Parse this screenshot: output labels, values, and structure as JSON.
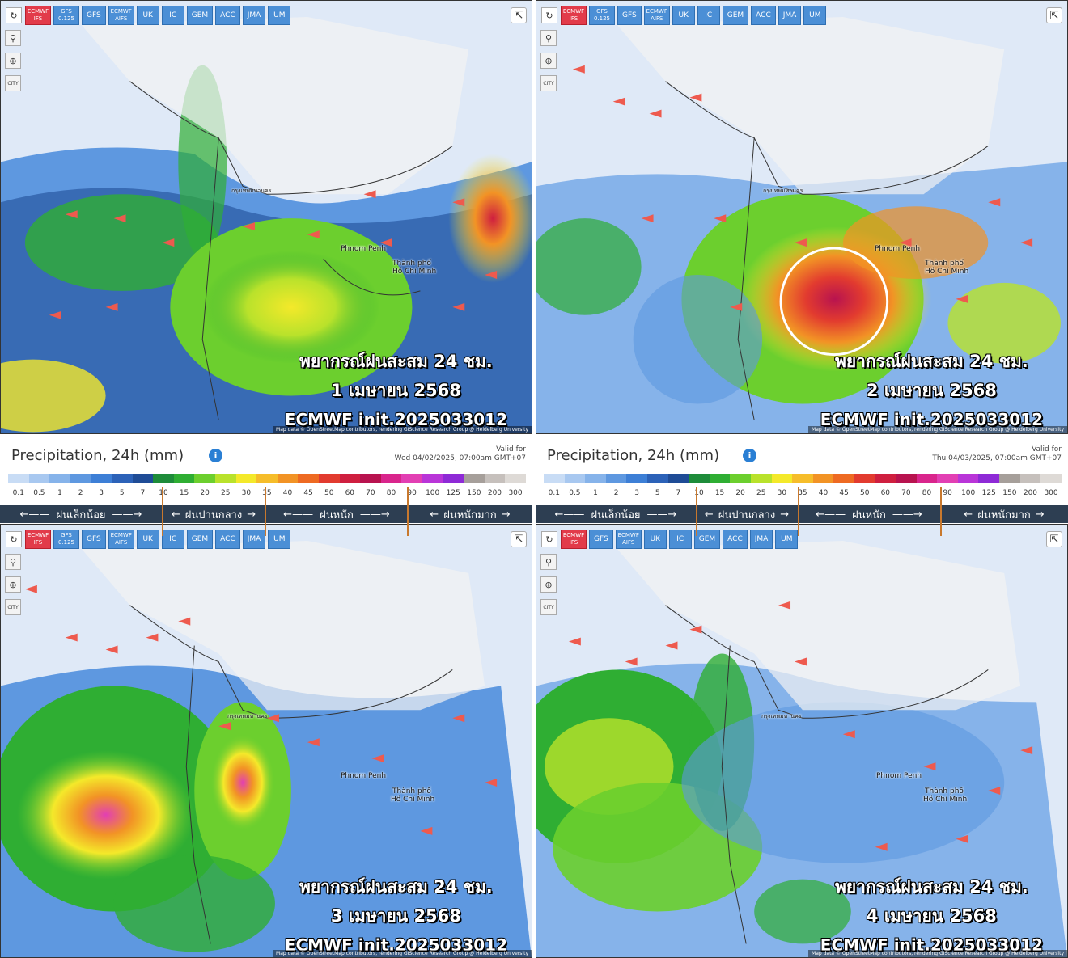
{
  "toolbar": {
    "buttons_full": [
      "ECMWF IFS",
      "GFS 0.125",
      "GFS",
      "ECMWF AIFS",
      "UK",
      "IC",
      "GEM",
      "ACC",
      "JMA",
      "UM"
    ],
    "buttons_p4": [
      "ECMWF IFS",
      "GFS",
      "ECMWF AIFS",
      "UK",
      "IC",
      "GEM",
      "ACC",
      "JMA",
      "UM"
    ],
    "side_icons": [
      "reload-icon",
      "location-icon",
      "zoom-icon",
      "city-icon"
    ],
    "side_labels": {
      "reload": "↻",
      "location": "⚲",
      "zoom": "⊕",
      "city": "CITY"
    },
    "share": "⇱"
  },
  "panels": [
    {
      "caption_line1": "พยากรณ์ฝนสะสม 24 ชม.",
      "caption_line2": "1 เมษายน 2568",
      "caption_line3": "ECMWF init.2025033012"
    },
    {
      "caption_line1": "พยากรณ์ฝนสะสม 24 ชม.",
      "caption_line2": "2 เมษายน 2568",
      "caption_line3": "ECMWF init.2025033012"
    },
    {
      "caption_line1": "พยากรณ์ฝนสะสม 24 ชม.",
      "caption_line2": "3 เมษายน 2568",
      "caption_line3": "ECMWF init.2025033012"
    },
    {
      "caption_line1": "พยากรณ์ฝนสะสม 24 ชม.",
      "caption_line2": "4 เมษายน 2568",
      "caption_line3": "ECMWF init.2025033012"
    }
  ],
  "map_labels": {
    "city1": "Phnom Penh",
    "city2a": "Thành phố",
    "city2b": "Hồ Chí Minh",
    "city3": "กรุงเทพมหานคร",
    "credit": "Map data © OpenStreetMap contributors, rendering GIScience Research Group @ Heidelberg University"
  },
  "legends": [
    {
      "title": "Precipitation, 24h (mm)",
      "valid_label": "Valid for",
      "valid_time": "Wed 04/02/2025, 07:00am GMT+07"
    },
    {
      "title": "Precipitation, 24h (mm)",
      "valid_label": "Valid for",
      "valid_time": "Thu 04/03/2025, 07:00am GMT+07"
    }
  ],
  "scale_ticks": [
    "0.1",
    "0.5",
    "1",
    "2",
    "3",
    "5",
    "7",
    "10",
    "15",
    "20",
    "25",
    "30",
    "35",
    "40",
    "45",
    "50",
    "60",
    "70",
    "80",
    "90",
    "100",
    "125",
    "150",
    "200",
    "300"
  ],
  "scale_colors": [
    "#c8dcf5",
    "#a8c8f0",
    "#86b3ea",
    "#5e98e0",
    "#3d7fd6",
    "#2c62b8",
    "#1f4c96",
    "#1e8c3a",
    "#2fae33",
    "#6ccf2e",
    "#b9e22b",
    "#f4e92a",
    "#f6bd2a",
    "#f29325",
    "#ee6a22",
    "#e23b2f",
    "#cf1f3f",
    "#b8134f",
    "#d9258c",
    "#e23fb3",
    "#b935d8",
    "#8e2ad6",
    "#a69f9a",
    "#c6c0bc",
    "#dedad6"
  ],
  "categories": [
    "ฝนเล็กน้อย",
    "ฝนปานกลาง",
    "ฝนหนัก",
    "ฝนหนักมาก"
  ],
  "colors": {
    "toolbar_button": "#4b8fd6",
    "toolbar_active": "#e23b4a",
    "legend_bar": "#2d3e52",
    "category_line": "#c8782d",
    "wind_arrow": "#ee5a4e"
  }
}
